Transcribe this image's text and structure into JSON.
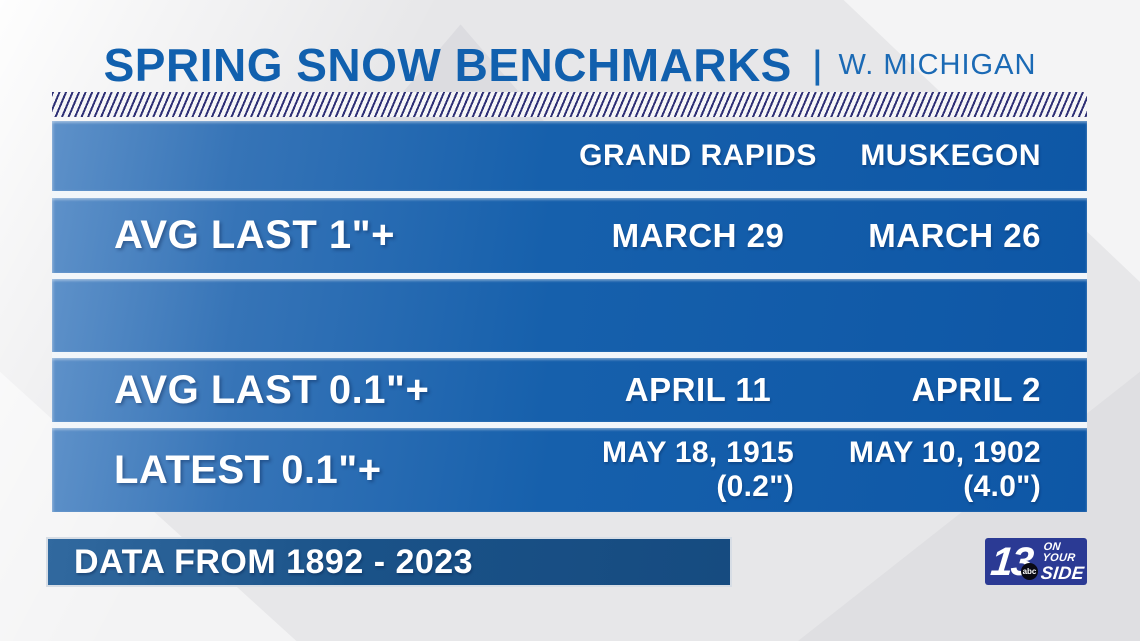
{
  "title": {
    "main": "SPRING SNOW BENCHMARKS",
    "separator": "|",
    "region": "W. MICHIGAN"
  },
  "table": {
    "columns": [
      "GRAND RAPIDS",
      "MUSKEGON"
    ],
    "rows": [
      {
        "label": "AVG LAST 1\"+",
        "grand_rapids": "MARCH 29",
        "muskegon": "MARCH 26"
      },
      {
        "label": "",
        "grand_rapids": "",
        "muskegon": ""
      },
      {
        "label": "AVG LAST 0.1\"+",
        "grand_rapids": "APRIL 11",
        "muskegon": "APRIL 2"
      },
      {
        "label": "LATEST 0.1\"+",
        "grand_rapids": "MAY 18, 1915",
        "grand_rapids_detail": "(0.2\")",
        "muskegon": "MAY 10, 1902",
        "muskegon_detail": "(4.0\")"
      }
    ]
  },
  "footer": {
    "source_note": "DATA FROM 1892 - 2023"
  },
  "logo": {
    "number": "13",
    "network": "abc",
    "tagline_top": "ON YOUR",
    "tagline_bottom": "SIDE"
  },
  "colors": {
    "title_blue": "#1160ae",
    "row_blue": "#1660ac",
    "row_blue_light": "#5e91c9",
    "hatch_navy": "#2e3075",
    "footer_navy": "#1a5288",
    "logo_blue": "#2b3a94",
    "background_gray": "#e7e7e9"
  },
  "chart_data": {
    "type": "table",
    "title": "SPRING SNOW BENCHMARKS | W. MICHIGAN",
    "columns": [
      "",
      "GRAND RAPIDS",
      "MUSKEGON"
    ],
    "rows": [
      [
        "AVG LAST 1\"+",
        "MARCH 29",
        "MARCH 26"
      ],
      [
        "AVG LAST 0.1\"+",
        "APRIL 11",
        "APRIL 2"
      ],
      [
        "LATEST 0.1\"+",
        "MAY 18, 1915 (0.2\")",
        "MAY 10, 1902 (4.0\")"
      ]
    ],
    "footnote": "DATA FROM 1892 - 2023"
  }
}
